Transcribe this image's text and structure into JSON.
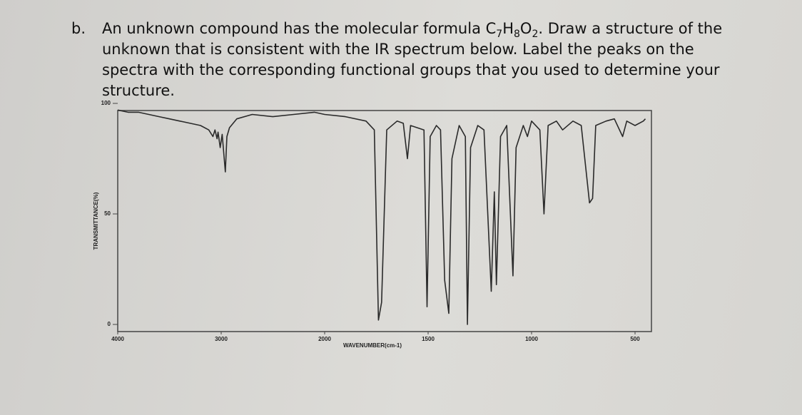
{
  "question": {
    "label": "b.",
    "segments": [
      {
        "text": "An unknown compound has the molecular formula C"
      },
      {
        "sub": "7"
      },
      {
        "text": "H"
      },
      {
        "sub": "8"
      },
      {
        "text": "O"
      },
      {
        "sub": "2"
      },
      {
        "text": ". Draw a structure of the unknown that is consistent with the IR spectrum below.  Label the peaks on the spectra with the corresponding functional groups that you used to determine your structure."
      }
    ]
  },
  "chart_data": {
    "type": "line",
    "xlabel": "WAVENUMBER(cm-1)",
    "ylabel": "TRANSMITTANCE(%)",
    "color": "#2a2a2a",
    "xlim": [
      4000,
      450
    ],
    "xticks": [
      4000,
      3000,
      2000,
      1500,
      1000,
      500
    ],
    "ylim": [
      0,
      100
    ],
    "yticks": [
      0,
      50,
      100
    ],
    "x": [
      4000,
      3900,
      3800,
      3700,
      3600,
      3500,
      3400,
      3300,
      3200,
      3120,
      3080,
      3060,
      3040,
      3030,
      3010,
      2990,
      2960,
      2945,
      2920,
      2850,
      2700,
      2500,
      2300,
      2100,
      2000,
      1900,
      1800,
      1760,
      1740,
      1725,
      1700,
      1650,
      1620,
      1600,
      1585,
      1520,
      1505,
      1490,
      1460,
      1440,
      1420,
      1400,
      1385,
      1350,
      1320,
      1310,
      1295,
      1260,
      1230,
      1195,
      1180,
      1170,
      1150,
      1120,
      1090,
      1075,
      1040,
      1020,
      1000,
      960,
      940,
      920,
      880,
      850,
      800,
      760,
      720,
      705,
      690,
      640,
      600,
      560,
      540,
      500,
      460,
      450
    ],
    "values": [
      97,
      96,
      96,
      95,
      94,
      93,
      92,
      91,
      90,
      88,
      85,
      88,
      84,
      87,
      80,
      86,
      69,
      85,
      89,
      93,
      95,
      94,
      95,
      96,
      95,
      94,
      92,
      88,
      2,
      10,
      88,
      92,
      91,
      75,
      90,
      88,
      8,
      85,
      90,
      88,
      20,
      5,
      75,
      90,
      85,
      0,
      80,
      90,
      88,
      15,
      60,
      18,
      85,
      90,
      22,
      80,
      90,
      85,
      92,
      88,
      50,
      90,
      92,
      88,
      92,
      90,
      55,
      57,
      90,
      92,
      93,
      85,
      92,
      90,
      92,
      93
    ]
  }
}
